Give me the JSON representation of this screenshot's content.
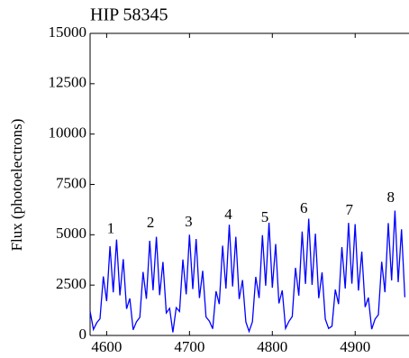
{
  "chart_data": {
    "type": "line",
    "title": "HIP 58345",
    "y_label": "Flux (photoelectrons)",
    "x": [
      4580,
      4584,
      4588,
      4592,
      4596,
      4600,
      4604,
      4608,
      4612,
      4616,
      4620,
      4624,
      4628,
      4632,
      4636,
      4640,
      4644,
      4648,
      4652,
      4656,
      4660,
      4664,
      4668,
      4672,
      4676,
      4680,
      4684,
      4688,
      4692,
      4696,
      4700,
      4704,
      4708,
      4712,
      4716,
      4720,
      4724,
      4728,
      4732,
      4736,
      4740,
      4744,
      4748,
      4752,
      4756,
      4760,
      4764,
      4768,
      4772,
      4776,
      4780,
      4784,
      4788,
      4792,
      4796,
      4800,
      4804,
      4808,
      4812,
      4816,
      4820,
      4824,
      4828,
      4832,
      4836,
      4840,
      4844,
      4848,
      4852,
      4856,
      4860,
      4864,
      4868,
      4872,
      4876,
      4880,
      4884,
      4888,
      4892,
      4896,
      4900,
      4904,
      4908,
      4912,
      4916,
      4920,
      4924,
      4928,
      4932,
      4936,
      4940,
      4944,
      4948,
      4952,
      4956,
      4960
    ],
    "values": [
      1200,
      300,
      630,
      830,
      2930,
      1700,
      4430,
      2140,
      4760,
      1990,
      3790,
      1320,
      1840,
      280,
      680,
      900,
      3150,
      1820,
      4700,
      2250,
      4900,
      2000,
      3650,
      1120,
      1350,
      150,
      1380,
      1190,
      3770,
      2040,
      5000,
      2300,
      4790,
      1860,
      3210,
      920,
      710,
      330,
      2200,
      1560,
      4460,
      2330,
      5500,
      2430,
      4900,
      1810,
      2750,
      670,
      200,
      680,
      2910,
      1860,
      4980,
      2470,
      5600,
      2370,
      4540,
      1590,
      2240,
      350,
      700,
      940,
      3360,
      1980,
      5160,
      2560,
      5800,
      2510,
      5050,
      1850,
      3130,
      810,
      350,
      460,
      2280,
      1560,
      4390,
      2330,
      5590,
      2570,
      5530,
      2230,
      4160,
      1410,
      1880,
      310,
      810,
      1030,
      3660,
      2150,
      5580,
      2730,
      6200,
      2650,
      5270,
      1900
    ],
    "color": "#0000ff",
    "xlim": [
      4580,
      4965
    ],
    "xticks": [
      4600,
      4700,
      4800,
      4900
    ],
    "ylim": [
      0,
      15000
    ],
    "yticks": [
      0,
      2500,
      5000,
      7500,
      10000,
      12500,
      15000
    ],
    "annotations": [
      {
        "text": "1",
        "x": 4605,
        "y": 5250
      },
      {
        "text": "2",
        "x": 4653,
        "y": 5550
      },
      {
        "text": "3",
        "x": 4699,
        "y": 5600
      },
      {
        "text": "4",
        "x": 4747,
        "y": 5950
      },
      {
        "text": "5",
        "x": 4791,
        "y": 5820
      },
      {
        "text": "6",
        "x": 4838,
        "y": 6270
      },
      {
        "text": "7",
        "x": 4893,
        "y": 6180
      },
      {
        "text": "8",
        "x": 4943,
        "y": 6800
      }
    ]
  }
}
